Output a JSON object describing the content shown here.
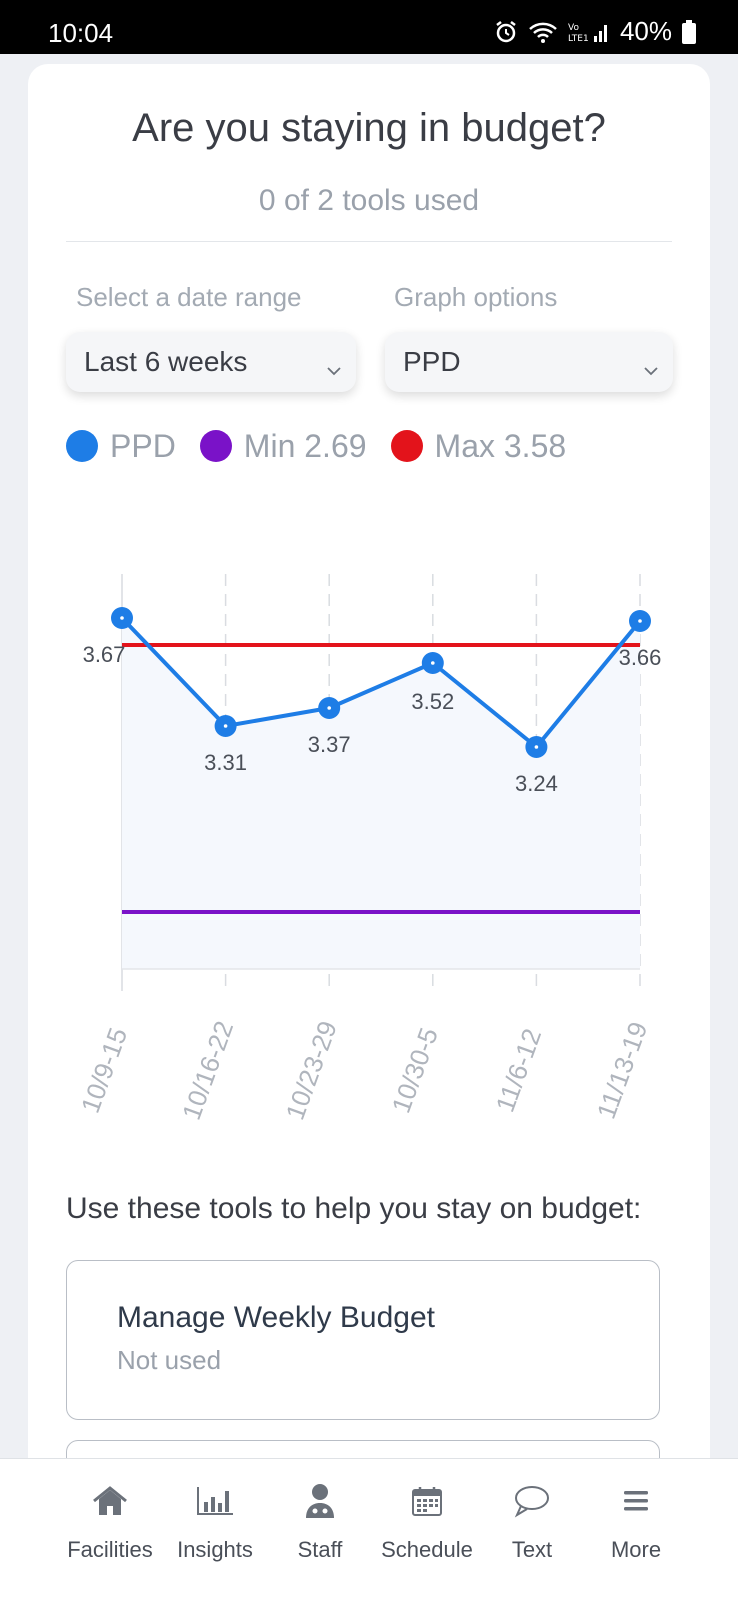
{
  "status_bar": {
    "time": "10:04",
    "battery": "40%"
  },
  "header": {
    "title": "Are you staying in budget?",
    "subtitle": "0 of 2 tools used"
  },
  "filters": {
    "date_label": "Select a date range",
    "date_value": "Last 6 weeks",
    "graph_label": "Graph options",
    "graph_value": "PPD"
  },
  "legend": {
    "ppd": {
      "label": "PPD",
      "color": "#1e7de6"
    },
    "min": {
      "label": "Min 2.69",
      "color": "#7a12c8"
    },
    "max": {
      "label": "Max 3.58",
      "color": "#e3131b"
    }
  },
  "chart_data": {
    "type": "line",
    "categories": [
      "10/9-15",
      "10/16-22",
      "10/23-29",
      "10/30-5",
      "11/6-12",
      "11/13-19"
    ],
    "series": [
      {
        "name": "PPD",
        "values": [
          3.67,
          3.31,
          3.37,
          3.52,
          3.24,
          3.66
        ]
      }
    ],
    "min_line": 2.69,
    "max_line": 3.58,
    "ylim": [
      2.5,
      3.85
    ],
    "grid": "vertical-dashed",
    "legend_position": "top"
  },
  "tools": {
    "heading": "Use these tools to help you stay on budget:",
    "items": [
      {
        "title": "Manage Weekly Budget",
        "status": "Not used"
      }
    ]
  },
  "nav": {
    "items": [
      {
        "label": "Facilities",
        "icon": "home-icon"
      },
      {
        "label": "Insights",
        "icon": "bar-chart-icon"
      },
      {
        "label": "Staff",
        "icon": "staff-icon"
      },
      {
        "label": "Schedule",
        "icon": "calendar-icon"
      },
      {
        "label": "Text",
        "icon": "chat-bubble-icon"
      },
      {
        "label": "More",
        "icon": "menu-icon"
      }
    ]
  }
}
